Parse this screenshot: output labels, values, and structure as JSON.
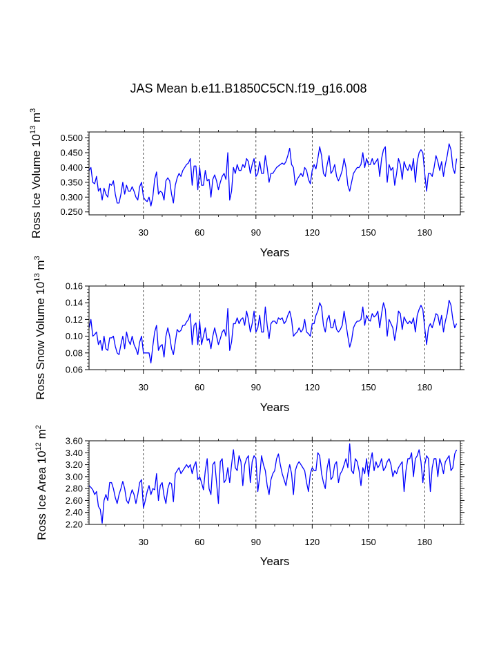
{
  "figure": {
    "title": "JAS Mean b.e11.B1850C5CN.f19_g16.008",
    "line_color": "#0000ff",
    "grid_color": "#000000"
  },
  "chart_data": [
    {
      "type": "line",
      "name": "ross-ice-volume",
      "ylabel": {
        "base": "Ross Ice Volume 10",
        "exp": "13",
        "unit": " m",
        "unit_exp": "3"
      },
      "xlabel": "Years",
      "xlim": [
        1,
        199
      ],
      "ylim": [
        0.24,
        0.52
      ],
      "xticks": [
        30,
        60,
        90,
        120,
        150,
        180
      ],
      "xtick_labels": [
        "30",
        "60",
        "90",
        "120",
        "150",
        "180"
      ],
      "yticks": [
        0.25,
        0.3,
        0.35,
        0.4,
        0.45,
        0.5
      ],
      "ytick_labels": [
        "0.250",
        "0.300",
        "0.350",
        "0.400",
        "0.450",
        "0.500"
      ],
      "vgrid": [
        30,
        60,
        90,
        120,
        150,
        180
      ],
      "series": [
        {
          "name": "Ross Ice Volume",
          "values": [
            0.39,
            0.4,
            0.35,
            0.345,
            0.37,
            0.32,
            0.33,
            0.29,
            0.33,
            0.31,
            0.3,
            0.345,
            0.34,
            0.355,
            0.31,
            0.28,
            0.28,
            0.31,
            0.35,
            0.31,
            0.34,
            0.32,
            0.32,
            0.335,
            0.32,
            0.3,
            0.29,
            0.335,
            0.35,
            0.3,
            0.29,
            0.285,
            0.3,
            0.27,
            0.3,
            0.36,
            0.385,
            0.31,
            0.32,
            0.315,
            0.29,
            0.355,
            0.365,
            0.355,
            0.31,
            0.28,
            0.34,
            0.365,
            0.38,
            0.37,
            0.39,
            0.4,
            0.41,
            0.415,
            0.43,
            0.34,
            0.405,
            0.405,
            0.325,
            0.4,
            0.34,
            0.34,
            0.39,
            0.355,
            0.36,
            0.3,
            0.36,
            0.375,
            0.355,
            0.325,
            0.35,
            0.37,
            0.38,
            0.36,
            0.45,
            0.29,
            0.32,
            0.4,
            0.38,
            0.41,
            0.39,
            0.39,
            0.41,
            0.4,
            0.43,
            0.42,
            0.38,
            0.41,
            0.43,
            0.37,
            0.38,
            0.42,
            0.38,
            0.38,
            0.44,
            0.4,
            0.35,
            0.38,
            0.38,
            0.39,
            0.4,
            0.405,
            0.41,
            0.415,
            0.41,
            0.42,
            0.44,
            0.465,
            0.41,
            0.4,
            0.34,
            0.36,
            0.37,
            0.38,
            0.37,
            0.4,
            0.39,
            0.36,
            0.345,
            0.39,
            0.41,
            0.395,
            0.43,
            0.47,
            0.44,
            0.38,
            0.37,
            0.41,
            0.44,
            0.38,
            0.39,
            0.41,
            0.37,
            0.355,
            0.37,
            0.39,
            0.43,
            0.4,
            0.34,
            0.32,
            0.35,
            0.38,
            0.39,
            0.4,
            0.4,
            0.41,
            0.45,
            0.4,
            0.43,
            0.41,
            0.41,
            0.43,
            0.41,
            0.42,
            0.43,
            0.37,
            0.43,
            0.46,
            0.47,
            0.35,
            0.41,
            0.39,
            0.4,
            0.34,
            0.38,
            0.43,
            0.41,
            0.36,
            0.42,
            0.4,
            0.39,
            0.41,
            0.39,
            0.43,
            0.35,
            0.42,
            0.45,
            0.46,
            0.45,
            0.38,
            0.32,
            0.38,
            0.38,
            0.37,
            0.4,
            0.44,
            0.42,
            0.39,
            0.42,
            0.37,
            0.41,
            0.44,
            0.48,
            0.46,
            0.4,
            0.38,
            0.43
          ]
        }
      ]
    },
    {
      "type": "line",
      "name": "ross-snow-volume",
      "ylabel": {
        "base": "Ross Snow Volume 10",
        "exp": "13",
        "unit": " m",
        "unit_exp": "3"
      },
      "xlabel": "Years",
      "xlim": [
        1,
        199
      ],
      "ylim": [
        0.06,
        0.16
      ],
      "xticks": [
        30,
        60,
        90,
        120,
        150,
        180
      ],
      "xtick_labels": [
        "30",
        "60",
        "90",
        "120",
        "150",
        "180"
      ],
      "yticks": [
        0.06,
        0.08,
        0.1,
        0.12,
        0.14,
        0.16
      ],
      "ytick_labels": [
        "0.06",
        "0.08",
        "0.10",
        "0.12",
        "0.14",
        "0.16"
      ],
      "vgrid": [
        30,
        60,
        90,
        120,
        150,
        180
      ],
      "series": [
        {
          "name": "Ross Snow Volume",
          "values": [
            0.11,
            0.12,
            0.1,
            0.102,
            0.105,
            0.09,
            0.095,
            0.083,
            0.1,
            0.085,
            0.083,
            0.098,
            0.098,
            0.1,
            0.088,
            0.08,
            0.078,
            0.09,
            0.1,
            0.085,
            0.105,
            0.095,
            0.09,
            0.1,
            0.09,
            0.085,
            0.078,
            0.093,
            0.1,
            0.08,
            0.08,
            0.08,
            0.08,
            0.068,
            0.088,
            0.105,
            0.113,
            0.083,
            0.088,
            0.09,
            0.075,
            0.1,
            0.11,
            0.1,
            0.085,
            0.078,
            0.093,
            0.108,
            0.105,
            0.107,
            0.113,
            0.113,
            0.117,
            0.12,
            0.127,
            0.09,
            0.113,
            0.116,
            0.09,
            0.118,
            0.09,
            0.1,
            0.11,
            0.095,
            0.097,
            0.085,
            0.1,
            0.11,
            0.1,
            0.09,
            0.097,
            0.105,
            0.108,
            0.1,
            0.133,
            0.083,
            0.093,
            0.115,
            0.115,
            0.122,
            0.115,
            0.12,
            0.122,
            0.113,
            0.13,
            0.12,
            0.105,
            0.115,
            0.13,
            0.105,
            0.11,
            0.125,
            0.105,
            0.105,
            0.135,
            0.113,
            0.097,
            0.115,
            0.118,
            0.118,
            0.115,
            0.122,
            0.12,
            0.122,
            0.115,
            0.118,
            0.125,
            0.13,
            0.12,
            0.1,
            0.103,
            0.105,
            0.11,
            0.105,
            0.108,
            0.12,
            0.105,
            0.103,
            0.1,
            0.115,
            0.115,
            0.125,
            0.13,
            0.14,
            0.135,
            0.113,
            0.105,
            0.12,
            0.125,
            0.11,
            0.11,
            0.12,
            0.108,
            0.105,
            0.108,
            0.113,
            0.13,
            0.115,
            0.1,
            0.087,
            0.095,
            0.11,
            0.115,
            0.118,
            0.118,
            0.12,
            0.135,
            0.113,
            0.125,
            0.12,
            0.118,
            0.127,
            0.123,
            0.125,
            0.13,
            0.11,
            0.127,
            0.14,
            0.132,
            0.1,
            0.12,
            0.115,
            0.11,
            0.095,
            0.11,
            0.13,
            0.127,
            0.108,
            0.123,
            0.118,
            0.115,
            0.118,
            0.115,
            0.122,
            0.105,
            0.125,
            0.132,
            0.137,
            0.132,
            0.11,
            0.09,
            0.11,
            0.115,
            0.11,
            0.118,
            0.127,
            0.125,
            0.113,
            0.125,
            0.105,
            0.118,
            0.127,
            0.143,
            0.137,
            0.12,
            0.11,
            0.115
          ]
        }
      ]
    },
    {
      "type": "line",
      "name": "ross-ice-area",
      "ylabel": {
        "base": "Ross Ice Area 10",
        "exp": "12",
        "unit": " m",
        "unit_exp": "2"
      },
      "xlabel": "Years",
      "xlim": [
        1,
        199
      ],
      "ylim": [
        2.2,
        3.6
      ],
      "xticks": [
        30,
        60,
        90,
        120,
        150,
        180
      ],
      "xtick_labels": [
        "30",
        "60",
        "90",
        "120",
        "150",
        "180"
      ],
      "yticks": [
        2.2,
        2.4,
        2.6,
        2.8,
        3.0,
        3.2,
        3.4,
        3.6
      ],
      "ytick_labels": [
        "2.20",
        "2.40",
        "2.60",
        "2.80",
        "3.00",
        "3.20",
        "3.40",
        "3.60"
      ],
      "vgrid": [
        30,
        60,
        90,
        120,
        150,
        180
      ],
      "series": [
        {
          "name": "Ross Ice Area",
          "values": [
            2.85,
            2.82,
            2.78,
            2.7,
            2.75,
            2.5,
            2.45,
            2.22,
            2.6,
            2.7,
            2.6,
            2.9,
            2.9,
            2.8,
            2.65,
            2.55,
            2.7,
            2.8,
            2.92,
            2.8,
            2.6,
            2.55,
            2.68,
            2.78,
            2.7,
            2.55,
            2.7,
            2.9,
            2.95,
            2.48,
            2.6,
            2.75,
            2.85,
            2.7,
            2.8,
            2.78,
            3.05,
            2.6,
            2.85,
            2.9,
            2.68,
            2.55,
            2.8,
            2.9,
            2.88,
            2.58,
            3.05,
            3.1,
            3.15,
            3.05,
            3.1,
            3.15,
            3.2,
            3.15,
            3.2,
            3.05,
            3.18,
            3.25,
            2.95,
            3.0,
            2.9,
            2.78,
            3.1,
            3.3,
            2.8,
            2.7,
            3.2,
            3.25,
            2.9,
            2.55,
            3.25,
            3.3,
            2.9,
            2.95,
            3.15,
            2.9,
            3.2,
            3.45,
            3.15,
            3.1,
            3.35,
            3.25,
            2.85,
            3.2,
            3.3,
            3.35,
            2.9,
            3.25,
            3.35,
            3.3,
            2.75,
            3.0,
            3.35,
            3.2,
            3.1,
            2.85,
            2.7,
            2.95,
            3.05,
            3.1,
            3.3,
            3.38,
            3.2,
            3.05,
            2.95,
            2.85,
            3.05,
            3.2,
            3.05,
            2.7,
            3.1,
            3.2,
            3.25,
            3.2,
            3.15,
            3.1,
            2.9,
            2.75,
            3.05,
            3.15,
            3.1,
            3.1,
            3.4,
            3.35,
            3.05,
            2.9,
            2.8,
            3.15,
            3.3,
            2.95,
            3.0,
            3.2,
            3.25,
            2.9,
            3.05,
            3.1,
            3.2,
            3.3,
            3.15,
            3.55,
            3.1,
            3.05,
            3.3,
            3.25,
            3.1,
            2.85,
            3.15,
            3.05,
            3.3,
            3.0,
            3.25,
            3.4,
            3.1,
            3.25,
            3.15,
            3.2,
            3.3,
            3.1,
            3.15,
            3.25,
            3.3,
            3.2,
            3.0,
            3.1,
            3.05,
            3.15,
            3.2,
            3.25,
            2.75,
            3.1,
            3.3,
            3.3,
            3.4,
            3.0,
            3.3,
            3.35,
            3.45,
            3.25,
            2.9,
            3.2,
            3.35,
            3.3,
            2.75,
            3.15,
            3.3,
            3.3,
            3.0,
            3.3,
            3.2,
            3.05,
            3.25,
            3.3,
            3.35,
            3.1,
            3.15,
            3.38,
            3.45
          ]
        }
      ]
    }
  ]
}
